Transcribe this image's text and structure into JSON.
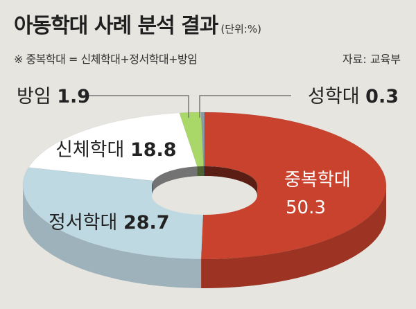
{
  "header": {
    "title": "아동학대 사례 분석 결과",
    "unit": "(단위:%)",
    "note": "※ 중복학대 = 신체학대+정서학대+방임",
    "source": "자료: 교육부"
  },
  "colors": {
    "중복학대": "#c8422d",
    "정서학대": "#bfd9e3",
    "신체학대": "#ffffff",
    "방임": "#a9d869",
    "성학대": "#8c9aa8"
  },
  "chart_data": {
    "type": "pie",
    "style": "3d-donut",
    "title": "아동학대 사례 분석 결과",
    "unit": "%",
    "slices": [
      {
        "label": "중복학대",
        "value": 50.3
      },
      {
        "label": "정서학대",
        "value": 28.7
      },
      {
        "label": "신체학대",
        "value": 18.8
      },
      {
        "label": "방임",
        "value": 1.9
      },
      {
        "label": "성학대",
        "value": 0.3
      }
    ]
  }
}
